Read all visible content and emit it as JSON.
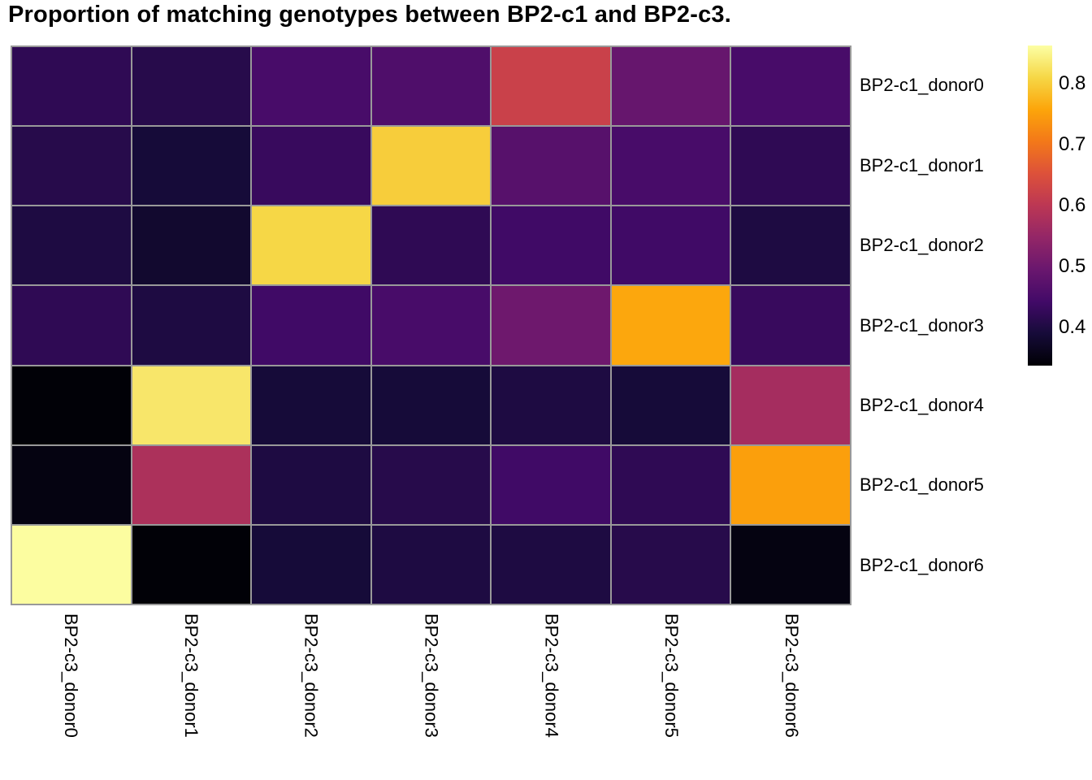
{
  "title": "Proportion of matching genotypes between BP2-c1 and BP2-c3.",
  "chart_data": {
    "type": "heatmap",
    "rows": [
      "BP2-c1_donor0",
      "BP2-c1_donor1",
      "BP2-c1_donor2",
      "BP2-c1_donor3",
      "BP2-c1_donor4",
      "BP2-c1_donor5",
      "BP2-c1_donor6"
    ],
    "columns": [
      "BP2-c3_donor0",
      "BP2-c3_donor1",
      "BP2-c3_donor2",
      "BP2-c3_donor3",
      "BP2-c3_donor4",
      "BP2-c3_donor5",
      "BP2-c3_donor6"
    ],
    "values": [
      [
        0.42,
        0.41,
        0.45,
        0.46,
        0.62,
        0.49,
        0.45
      ],
      [
        0.41,
        0.39,
        0.43,
        0.8,
        0.47,
        0.45,
        0.42
      ],
      [
        0.4,
        0.38,
        0.81,
        0.42,
        0.44,
        0.44,
        0.4
      ],
      [
        0.42,
        0.4,
        0.44,
        0.45,
        0.5,
        0.76,
        0.43
      ],
      [
        0.34,
        0.83,
        0.39,
        0.39,
        0.4,
        0.39,
        0.57
      ],
      [
        0.35,
        0.58,
        0.4,
        0.41,
        0.44,
        0.42,
        0.75
      ],
      [
        0.86,
        0.34,
        0.39,
        0.4,
        0.4,
        0.41,
        0.35
      ]
    ],
    "vmin": 0.3375,
    "vmax": 0.8625,
    "colormap": "inferno",
    "colormap_stops": [
      "#000004",
      "#160b39",
      "#420a68",
      "#6a176e",
      "#932667",
      "#bc3754",
      "#dd513a",
      "#f37819",
      "#fca50a",
      "#f6d746",
      "#fcffa4"
    ],
    "grid_color": "#999999",
    "legend_position": "right",
    "colorbar": {
      "tick_labels": [
        "0.8",
        "0.7",
        "0.6",
        "0.5",
        "0.4"
      ],
      "tick_values": [
        0.8,
        0.7,
        0.6,
        0.5,
        0.4
      ]
    }
  }
}
